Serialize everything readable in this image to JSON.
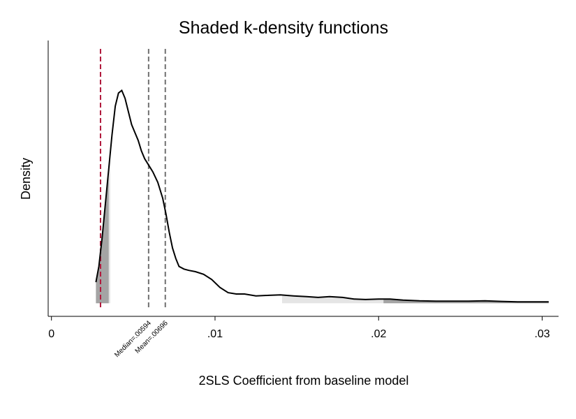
{
  "chart_data": {
    "type": "area",
    "title": "Shaded k-density functions",
    "xlabel": "2SLS Coefficient from baseline model",
    "ylabel": "Density",
    "xlim": [
      -0.0002,
      0.031
    ],
    "ylim": [
      -0.05,
      1.0
    ],
    "x_ticks": [
      {
        "value": 0,
        "label": "0"
      },
      {
        "value": 0.01,
        "label": ".01"
      },
      {
        "value": 0.02,
        "label": ".02"
      },
      {
        "value": 0.03,
        "label": ".03"
      }
    ],
    "y_ticks_shown": false,
    "grid": false,
    "legend": "none",
    "density_curve": {
      "x": [
        0.00272,
        0.0029,
        0.0031,
        0.0033,
        0.0035,
        0.0037,
        0.0039,
        0.0041,
        0.0043,
        0.0045,
        0.0047,
        0.0049,
        0.0051,
        0.0053,
        0.0055,
        0.0057,
        0.0059,
        0.0062,
        0.0065,
        0.0068,
        0.007,
        0.0072,
        0.0074,
        0.0076,
        0.0078,
        0.0081,
        0.0084,
        0.0088,
        0.0093,
        0.0098,
        0.0103,
        0.0108,
        0.0113,
        0.0118,
        0.0125,
        0.0133,
        0.014,
        0.0148,
        0.0156,
        0.0163,
        0.017,
        0.0178,
        0.0185,
        0.0192,
        0.02,
        0.0207,
        0.0215,
        0.0225,
        0.0235,
        0.0245,
        0.0255,
        0.0265,
        0.0275,
        0.0285,
        0.0295,
        0.0304
      ],
      "y": [
        0.08,
        0.14,
        0.25,
        0.38,
        0.51,
        0.64,
        0.75,
        0.8,
        0.81,
        0.78,
        0.73,
        0.68,
        0.65,
        0.62,
        0.58,
        0.55,
        0.53,
        0.5,
        0.46,
        0.4,
        0.34,
        0.27,
        0.21,
        0.17,
        0.14,
        0.13,
        0.125,
        0.12,
        0.11,
        0.09,
        0.06,
        0.04,
        0.035,
        0.035,
        0.028,
        0.03,
        0.032,
        0.028,
        0.025,
        0.022,
        0.025,
        0.022,
        0.016,
        0.014,
        0.016,
        0.016,
        0.012,
        0.009,
        0.008,
        0.008,
        0.008,
        0.009,
        0.007,
        0.005,
        0.005,
        0.005
      ]
    },
    "shaded_regions": [
      {
        "from": 0.00272,
        "to": 0.0036,
        "color": "#e5e5e5"
      },
      {
        "from": 0.00272,
        "to": 0.0035,
        "color": "#a4a4a4"
      },
      {
        "from": 0.0141,
        "to": 0.0304,
        "color": "#e5e5e5"
      },
      {
        "from": 0.0203,
        "to": 0.0304,
        "color": "#a4a4a4"
      }
    ],
    "reference_lines": [
      {
        "x": 0.003,
        "color": "#b0193c",
        "label": ""
      },
      {
        "x": 0.00594,
        "color": "#707070",
        "label": "Median=.00594"
      },
      {
        "x": 0.00696,
        "color": "#707070",
        "label": "Mean=.00696"
      }
    ]
  }
}
